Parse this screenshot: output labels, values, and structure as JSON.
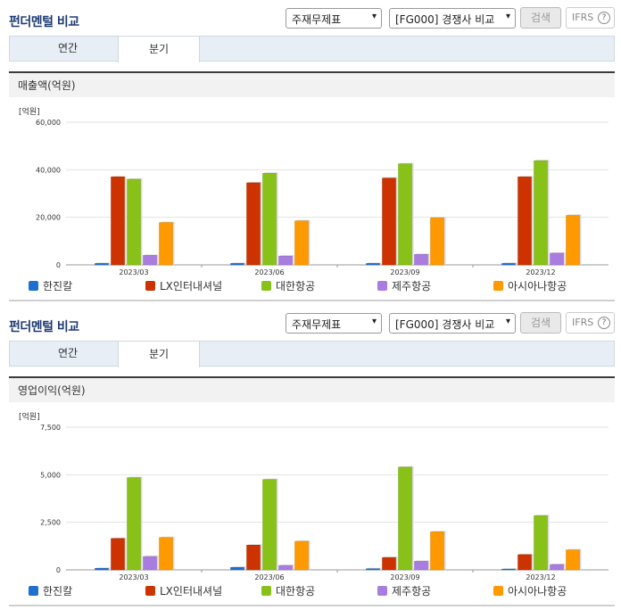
{
  "sections": [
    {
      "title": "펀더멘털 비교",
      "select_statement": "주재무제표",
      "select_compare": "[FG000] 경쟁사 비교",
      "search_label": "검색",
      "ifrs_label": "IFRS",
      "help_label": "?",
      "tabs": [
        {
          "label": "연간"
        },
        {
          "label": "분기"
        }
      ],
      "chart_header": "매출액(억원)",
      "unit_label": "[억원]"
    },
    {
      "title": "펀더멘털 비교",
      "select_statement": "주재무제표",
      "select_compare": "[FG000] 경쟁사 비교",
      "search_label": "검색",
      "ifrs_label": "IFRS",
      "help_label": "?",
      "tabs": [
        {
          "label": "연간"
        },
        {
          "label": "분기"
        }
      ],
      "chart_header": "영업이익(억원)",
      "unit_label": "[억원]"
    }
  ],
  "colors": [
    "#1f6fd1",
    "#cc3300",
    "#88c219",
    "#a97ce0",
    "#ff9900"
  ],
  "icons": {
    "dropdown": "chevron-down-icon",
    "help": "question-circle-icon"
  },
  "chart_data": [
    {
      "type": "bar",
      "categories": [
        "2023/03",
        "2023/06",
        "2023/09",
        "2023/12"
      ],
      "ylim": [
        0,
        60000
      ],
      "yticks": [
        0,
        20000,
        40000,
        60000
      ],
      "ytick_labels": [
        "0",
        "20,000",
        "40,000",
        "60,000"
      ],
      "legend_position": "bottom",
      "grid": true,
      "series": [
        {
          "name": "한진칼",
          "values": [
            600,
            600,
            600,
            600
          ]
        },
        {
          "name": "LX인터내셔널",
          "values": [
            37000,
            34500,
            36500,
            37000
          ]
        },
        {
          "name": "대한항공",
          "values": [
            36000,
            38500,
            42500,
            43800
          ]
        },
        {
          "name": "제주항공",
          "values": [
            4000,
            3700,
            4400,
            4900
          ]
        },
        {
          "name": "아시아나항공",
          "values": [
            17800,
            18500,
            19800,
            20800
          ]
        }
      ]
    },
    {
      "type": "bar",
      "categories": [
        "2023/03",
        "2023/06",
        "2023/09",
        "2023/12"
      ],
      "ylim": [
        0,
        7500
      ],
      "yticks": [
        0,
        2500,
        5000,
        7500
      ],
      "ytick_labels": [
        "0",
        "2,500",
        "5,000",
        "7,500"
      ],
      "legend_position": "bottom",
      "grid": true,
      "series": [
        {
          "name": "한진칼",
          "values": [
            80,
            130,
            60,
            40
          ]
        },
        {
          "name": "LX인터내셔널",
          "values": [
            1650,
            1300,
            650,
            800
          ]
        },
        {
          "name": "대한항공",
          "values": [
            4850,
            4750,
            5400,
            2850
          ]
        },
        {
          "name": "제주항공",
          "values": [
            700,
            230,
            450,
            280
          ]
        },
        {
          "name": "아시아나항공",
          "values": [
            1700,
            1500,
            2000,
            1050
          ]
        }
      ]
    }
  ]
}
